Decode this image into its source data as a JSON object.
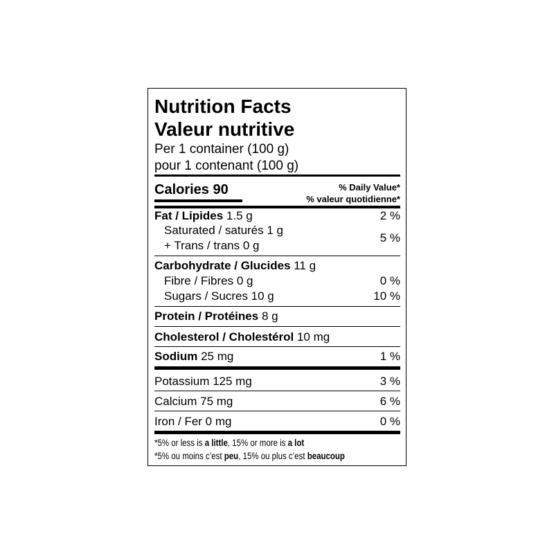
{
  "header": {
    "title": "Nutrition Facts",
    "title_fr": "Valeur nutritive",
    "serving": "Per 1 container (100 g)",
    "serving_fr": "pour 1 contenant (100 g)"
  },
  "calories": {
    "label": "Calories 90",
    "dv_header": "% Daily Value*",
    "dv_header_fr": "% valeur quotidienne*"
  },
  "fat": {
    "name": "Fat / Lipides",
    "amount": "1.5 g",
    "dv": "2 %",
    "saturated": "Saturated / saturés 1 g",
    "trans": "+ Trans / trans 0 g",
    "sat_trans_dv": "5 %"
  },
  "carbohydrate": {
    "name": "Carbohydrate / Glucides",
    "amount": "11 g",
    "fibre": "Fibre / Fibres 0 g",
    "fibre_dv": "0 %",
    "sugars": "Sugars / Sucres 10 g",
    "sugars_dv": "10 %"
  },
  "protein": {
    "name": "Protein / Protéines",
    "amount": "8 g"
  },
  "cholesterol": {
    "name": "Cholesterol / Cholestérol",
    "amount": "10 mg"
  },
  "sodium": {
    "name": "Sodium",
    "amount": "25 mg",
    "dv": "1 %"
  },
  "minerals": [
    {
      "label": "Potassium 125 mg",
      "dv": "3 %"
    },
    {
      "label": "Calcium 75 mg",
      "dv": "6 %"
    },
    {
      "label": "Iron / Fer 0 mg",
      "dv": "0 %"
    }
  ],
  "footnote": {
    "en": [
      "*5% or less is ",
      "a little",
      ", 15% or more is ",
      "a lot"
    ],
    "fr": [
      "*5% ou moins c’est ",
      "peu",
      ", 15% ou plus c’est ",
      "beaucoup"
    ]
  }
}
